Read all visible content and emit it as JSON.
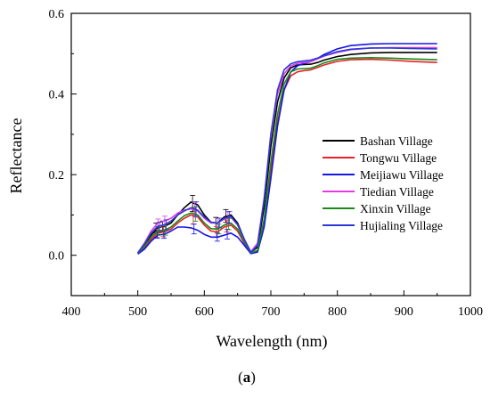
{
  "chart_data": {
    "type": "line",
    "title": "",
    "xlabel": "Wavelength (nm)",
    "ylabel": "Reflectance",
    "xlim": [
      400,
      1000
    ],
    "ylim": [
      -0.1,
      0.6
    ],
    "x_ticks": [
      400,
      500,
      600,
      700,
      800,
      900,
      1000
    ],
    "y_ticks": [
      0.0,
      0.2,
      0.4,
      0.6
    ],
    "grid": false,
    "legend_position": "right",
    "caption": {
      "prefix": "(",
      "letter": "a",
      "suffix": ")"
    },
    "x": [
      500,
      510,
      520,
      530,
      540,
      550,
      560,
      570,
      580,
      590,
      600,
      610,
      620,
      630,
      640,
      650,
      660,
      670,
      680,
      690,
      700,
      710,
      720,
      730,
      740,
      750,
      760,
      770,
      780,
      800,
      820,
      850,
      880,
      910,
      950
    ],
    "error_bar_x": [
      530,
      540,
      585,
      620,
      635
    ],
    "series": [
      {
        "name": "Bashan Village",
        "color": "#000000",
        "values": [
          0.005,
          0.025,
          0.05,
          0.068,
          0.072,
          0.08,
          0.1,
          0.118,
          0.132,
          0.125,
          0.1,
          0.082,
          0.08,
          0.095,
          0.1,
          0.08,
          0.04,
          0.008,
          0.02,
          0.12,
          0.27,
          0.38,
          0.44,
          0.465,
          0.472,
          0.473,
          0.474,
          0.478,
          0.484,
          0.493,
          0.498,
          0.502,
          0.503,
          0.503,
          0.503
        ],
        "error_bars": [
          0.012,
          0.013,
          0.02,
          0.014,
          0.016
        ]
      },
      {
        "name": "Tongwu Village",
        "color": "#e8222a",
        "values": [
          0.004,
          0.02,
          0.04,
          0.055,
          0.058,
          0.065,
          0.08,
          0.092,
          0.1,
          0.095,
          0.075,
          0.06,
          0.058,
          0.07,
          0.075,
          0.06,
          0.03,
          0.005,
          0.01,
          0.08,
          0.21,
          0.33,
          0.41,
          0.445,
          0.455,
          0.458,
          0.46,
          0.466,
          0.472,
          0.481,
          0.485,
          0.486,
          0.484,
          0.481,
          0.478
        ],
        "error_bars": [
          0.01,
          0.012,
          0.02,
          0.013,
          0.015
        ]
      },
      {
        "name": "Meijiawu Village",
        "color": "#1515e6",
        "values": [
          0.003,
          0.015,
          0.035,
          0.05,
          0.052,
          0.06,
          0.07,
          0.07,
          0.068,
          0.062,
          0.052,
          0.045,
          0.045,
          0.05,
          0.055,
          0.045,
          0.025,
          0.004,
          0.008,
          0.07,
          0.19,
          0.32,
          0.41,
          0.455,
          0.47,
          0.476,
          0.48,
          0.488,
          0.498,
          0.512,
          0.52,
          0.524,
          0.525,
          0.525,
          0.525
        ],
        "error_bars": [
          0.008,
          0.01,
          0.012,
          0.01,
          0.012
        ]
      },
      {
        "name": "Tiedian Village",
        "color": "#e23fe2",
        "values": [
          0.006,
          0.03,
          0.06,
          0.08,
          0.085,
          0.092,
          0.105,
          0.112,
          0.115,
          0.11,
          0.092,
          0.08,
          0.08,
          0.09,
          0.095,
          0.075,
          0.04,
          0.009,
          0.03,
          0.14,
          0.3,
          0.4,
          0.45,
          0.47,
          0.476,
          0.478,
          0.48,
          0.487,
          0.494,
          0.503,
          0.51,
          0.514,
          0.515,
          0.515,
          0.515
        ],
        "error_bars": [
          0.01,
          0.012,
          0.018,
          0.012,
          0.015
        ]
      },
      {
        "name": "Xinxin Village",
        "color": "#1a8a1a",
        "values": [
          0.005,
          0.022,
          0.045,
          0.06,
          0.062,
          0.07,
          0.085,
          0.098,
          0.105,
          0.1,
          0.08,
          0.066,
          0.065,
          0.075,
          0.08,
          0.065,
          0.034,
          0.006,
          0.012,
          0.09,
          0.23,
          0.35,
          0.425,
          0.455,
          0.462,
          0.463,
          0.464,
          0.47,
          0.477,
          0.486,
          0.489,
          0.49,
          0.489,
          0.487,
          0.485
        ],
        "error_bars": [
          0.01,
          0.012,
          0.018,
          0.012,
          0.014
        ]
      },
      {
        "name": "Hujialing Village",
        "color": "#2e3ad8",
        "values": [
          0.006,
          0.028,
          0.055,
          0.072,
          0.076,
          0.085,
          0.1,
          0.11,
          0.118,
          0.112,
          0.095,
          0.082,
          0.08,
          0.092,
          0.096,
          0.076,
          0.04,
          0.007,
          0.025,
          0.14,
          0.3,
          0.41,
          0.46,
          0.475,
          0.48,
          0.482,
          0.484,
          0.489,
          0.495,
          0.505,
          0.511,
          0.514,
          0.514,
          0.513,
          0.512
        ],
        "error_bars": [
          0.01,
          0.012,
          0.018,
          0.012,
          0.015
        ]
      }
    ]
  }
}
